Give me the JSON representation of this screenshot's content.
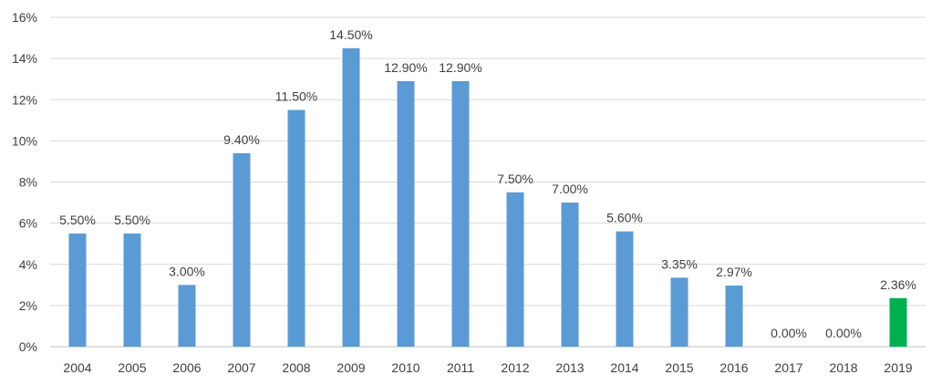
{
  "chart_data": {
    "type": "bar",
    "title": "",
    "xlabel": "",
    "ylabel": "",
    "categories": [
      "2004",
      "2005",
      "2006",
      "2007",
      "2008",
      "2009",
      "2010",
      "2011",
      "2012",
      "2013",
      "2014",
      "2015",
      "2016",
      "2017",
      "2018",
      "2019"
    ],
    "values": [
      5.5,
      5.5,
      3.0,
      9.4,
      11.5,
      14.5,
      12.9,
      12.9,
      7.5,
      7.0,
      5.6,
      3.35,
      2.97,
      0.0,
      0.0,
      2.36
    ],
    "data_labels": [
      "5.50%",
      "5.50%",
      "3.00%",
      "9.40%",
      "11.50%",
      "14.50%",
      "12.90%",
      "12.90%",
      "7.50%",
      "7.00%",
      "5.60%",
      "3.35%",
      "2.97%",
      "0.00%",
      "0.00%",
      "2.36%"
    ],
    "ylim": [
      0,
      16
    ],
    "y_ticks": [
      0,
      2,
      4,
      6,
      8,
      10,
      12,
      14,
      16
    ],
    "y_tick_labels": [
      "0%",
      "2%",
      "4%",
      "6%",
      "8%",
      "10%",
      "12%",
      "14%",
      "16%"
    ],
    "grid": true,
    "legend": "none",
    "colors": {
      "default_bar": "#5b9bd5",
      "highlight_bar": "#00b050",
      "highlight_category": "2019"
    }
  }
}
